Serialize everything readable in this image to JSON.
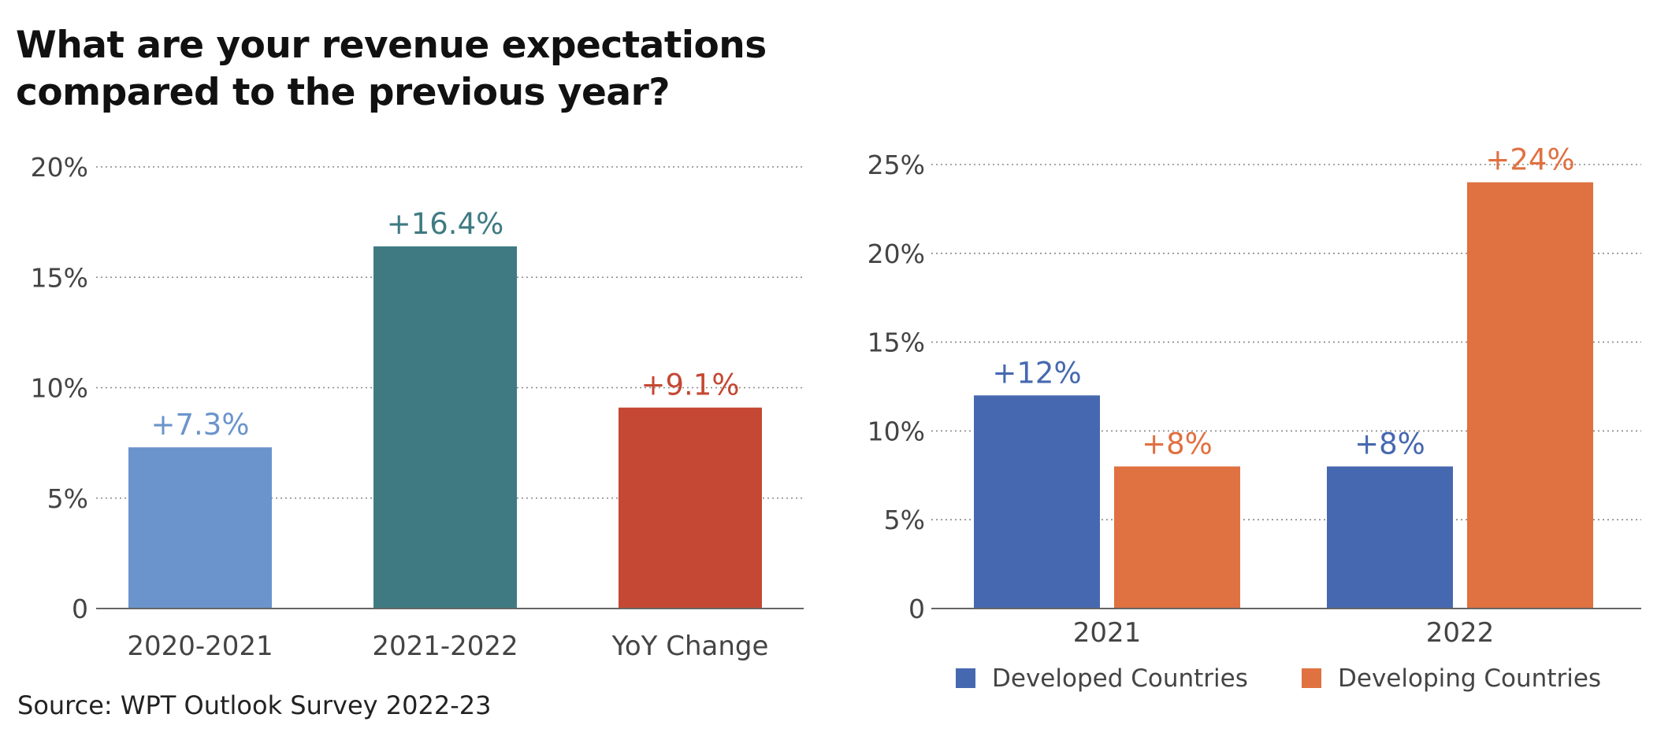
{
  "title_lines": [
    "What are your revenue expectations",
    "compared to the previous year?"
  ],
  "source": "Source: WPT Outlook Survey 2022-23",
  "chart_data": [
    {
      "type": "bar",
      "categories": [
        "2020-2021",
        "2021-2022",
        "YoY Change"
      ],
      "values": [
        7.3,
        16.4,
        9.1
      ],
      "data_labels": [
        "+7.3%",
        "+16.4%",
        "+9.1%"
      ],
      "colors": [
        "#6b94cc",
        "#3f7a82",
        "#c44833"
      ],
      "label_colors": [
        "#6b94cc",
        "#3f7a82",
        "#c44833"
      ],
      "yticks": [
        0,
        5,
        10,
        15,
        20
      ],
      "ytick_labels": [
        "0",
        "5%",
        "10%",
        "15%",
        "20%"
      ],
      "ylim": [
        0,
        20
      ],
      "grid": true
    },
    {
      "type": "bar",
      "categories": [
        "2021",
        "2022"
      ],
      "series": [
        {
          "name": "Developed Countries",
          "values": [
            12,
            8
          ],
          "data_labels": [
            "+12%",
            "+8%"
          ],
          "color": "#4668b0"
        },
        {
          "name": "Developing Countries",
          "values": [
            8,
            24
          ],
          "data_labels": [
            "+8%",
            "+24%"
          ],
          "color": "#e07141"
        }
      ],
      "yticks": [
        0,
        5,
        10,
        15,
        20,
        25
      ],
      "ytick_labels": [
        "0",
        "5%",
        "10%",
        "15%",
        "20%",
        "25%"
      ],
      "ylim": [
        0,
        25
      ],
      "grid": true,
      "legend": "bottom"
    }
  ]
}
